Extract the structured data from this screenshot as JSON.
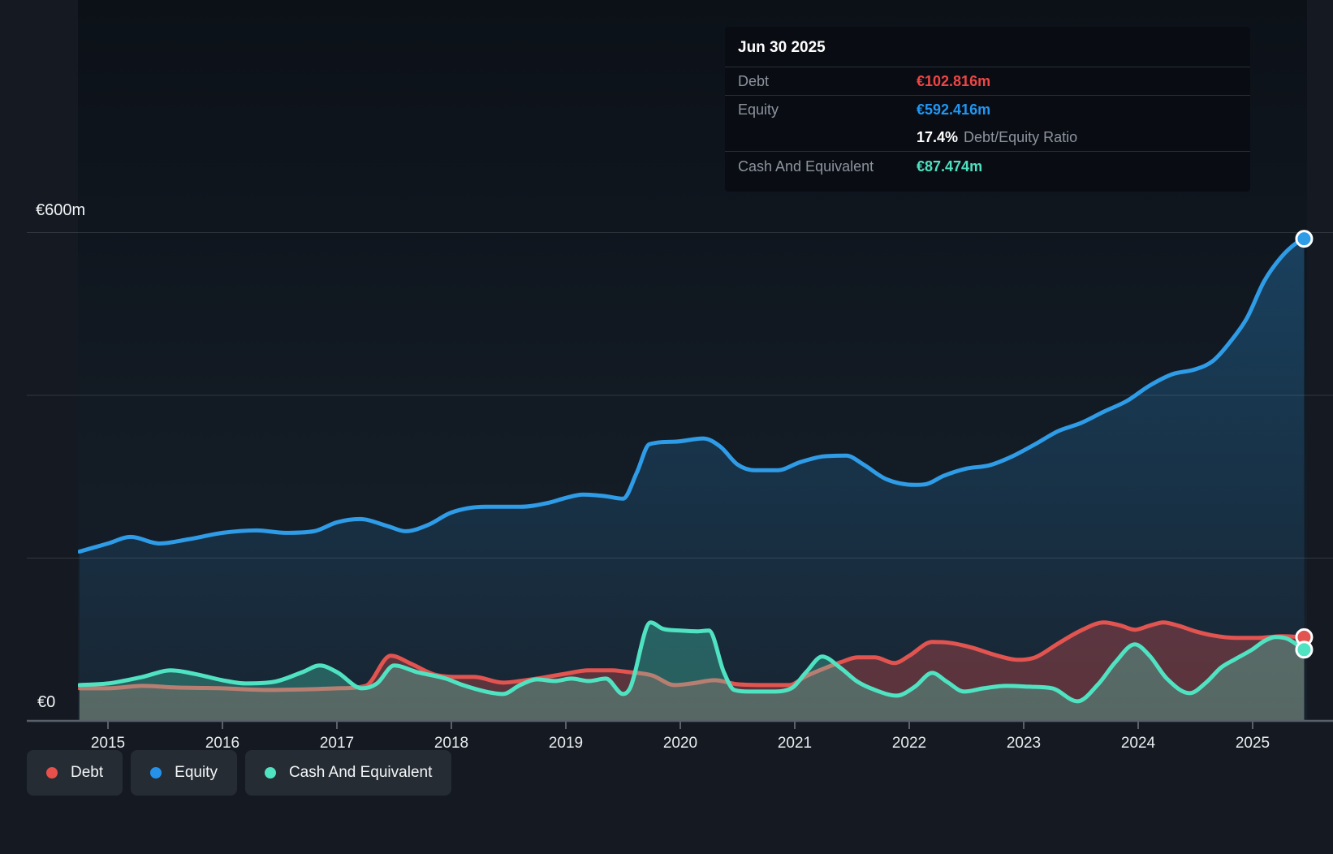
{
  "page": {
    "background": "#151a22"
  },
  "tooltip": {
    "date": "Jun 30 2025",
    "debt_label": "Debt",
    "debt_value": "€102.816m",
    "equity_label": "Equity",
    "equity_value": "€592.416m",
    "ratio_value": "17.4%",
    "ratio_label": "Debt/Equity Ratio",
    "cash_label": "Cash And Equivalent",
    "cash_value": "€87.474m"
  },
  "legend": {
    "items": [
      {
        "id": "debt",
        "label": "Debt",
        "color": "#e8504b"
      },
      {
        "id": "equity",
        "label": "Equity",
        "color": "#2492eb"
      },
      {
        "id": "cash",
        "label": "Cash And Equivalent",
        "color": "#50e3c2"
      }
    ]
  },
  "chart_data": {
    "type": "area",
    "unit": "€m",
    "x_axis": {
      "years": [
        "2015",
        "2016",
        "2017",
        "2018",
        "2019",
        "2020",
        "2021",
        "2022",
        "2023",
        "2024",
        "2025"
      ],
      "range": [
        2014.75,
        2025.45
      ]
    },
    "y_axis": {
      "label_top": "€600m",
      "label_zero": "€0",
      "range": [
        0,
        600
      ],
      "gridline_values": [
        600,
        400,
        200
      ]
    },
    "colors": {
      "equity": "#2f9ce8",
      "debt": "#e25450",
      "cash": "#50e3c2",
      "marker_ring": "#ffffff"
    },
    "end_values": {
      "debt": 102.816,
      "equity": 592.416,
      "cash": 87.474
    },
    "series": [
      {
        "id": "equity",
        "name": "Equity",
        "color": "#2f9ce8",
        "fill": "gradient",
        "points": [
          [
            2014.75,
            208
          ],
          [
            2015,
            218
          ],
          [
            2015.2,
            226
          ],
          [
            2015.45,
            218
          ],
          [
            2015.7,
            223
          ],
          [
            2016,
            231
          ],
          [
            2016.3,
            234
          ],
          [
            2016.55,
            231
          ],
          [
            2016.8,
            233
          ],
          [
            2017,
            244
          ],
          [
            2017.2,
            248
          ],
          [
            2017.45,
            239
          ],
          [
            2017.6,
            233
          ],
          [
            2017.8,
            241
          ],
          [
            2018,
            256
          ],
          [
            2018.3,
            263
          ],
          [
            2018.6,
            263
          ],
          [
            2018.85,
            268
          ],
          [
            2019,
            274
          ],
          [
            2019.15,
            278
          ],
          [
            2019.35,
            276
          ],
          [
            2019.5,
            273
          ],
          [
            2019.62,
            305
          ],
          [
            2019.73,
            340
          ],
          [
            2019.95,
            343
          ],
          [
            2020.2,
            347
          ],
          [
            2020.35,
            337
          ],
          [
            2020.5,
            315
          ],
          [
            2020.65,
            308
          ],
          [
            2020.85,
            308
          ],
          [
            2021.05,
            318
          ],
          [
            2021.25,
            325
          ],
          [
            2021.45,
            326
          ],
          [
            2021.6,
            315
          ],
          [
            2021.8,
            297
          ],
          [
            2022.05,
            290
          ],
          [
            2022.15,
            291
          ],
          [
            2022.3,
            301
          ],
          [
            2022.5,
            310
          ],
          [
            2022.7,
            314
          ],
          [
            2022.9,
            325
          ],
          [
            2023.1,
            340
          ],
          [
            2023.3,
            356
          ],
          [
            2023.5,
            366
          ],
          [
            2023.7,
            380
          ],
          [
            2023.9,
            393
          ],
          [
            2024.1,
            412
          ],
          [
            2024.3,
            426
          ],
          [
            2024.5,
            432
          ],
          [
            2024.65,
            442
          ],
          [
            2024.8,
            465
          ],
          [
            2024.95,
            495
          ],
          [
            2025.1,
            540
          ],
          [
            2025.25,
            570
          ],
          [
            2025.38,
            587
          ],
          [
            2025.45,
            592.416
          ]
        ]
      },
      {
        "id": "debt",
        "name": "Debt",
        "color": "#e25450",
        "fill": "rgba(224,80,78,0.34)",
        "points": [
          [
            2014.75,
            40
          ],
          [
            2015,
            40
          ],
          [
            2015.3,
            43
          ],
          [
            2015.6,
            41
          ],
          [
            2016,
            40
          ],
          [
            2016.4,
            38
          ],
          [
            2016.8,
            39
          ],
          [
            2017,
            40
          ],
          [
            2017.25,
            43
          ],
          [
            2017.47,
            80
          ],
          [
            2017.65,
            70
          ],
          [
            2017.85,
            57
          ],
          [
            2018.05,
            54
          ],
          [
            2018.2,
            54
          ],
          [
            2018.45,
            47
          ],
          [
            2018.6,
            49
          ],
          [
            2018.75,
            52
          ],
          [
            2019,
            58
          ],
          [
            2019.2,
            62
          ],
          [
            2019.4,
            62
          ],
          [
            2019.55,
            60
          ],
          [
            2019.75,
            56
          ],
          [
            2019.95,
            44
          ],
          [
            2020.1,
            46
          ],
          [
            2020.3,
            50
          ],
          [
            2020.5,
            45
          ],
          [
            2020.75,
            44
          ],
          [
            2020.95,
            44
          ],
          [
            2021.1,
            55
          ],
          [
            2021.25,
            64
          ],
          [
            2021.4,
            72
          ],
          [
            2021.55,
            78
          ],
          [
            2021.7,
            78
          ],
          [
            2021.87,
            71
          ],
          [
            2022,
            80
          ],
          [
            2022.2,
            97
          ],
          [
            2022.35,
            96
          ],
          [
            2022.55,
            90
          ],
          [
            2022.75,
            81
          ],
          [
            2022.95,
            75
          ],
          [
            2023.1,
            78
          ],
          [
            2023.3,
            95
          ],
          [
            2023.5,
            111
          ],
          [
            2023.7,
            121
          ],
          [
            2023.85,
            117
          ],
          [
            2023.97,
            112
          ],
          [
            2024.1,
            117
          ],
          [
            2024.22,
            121
          ],
          [
            2024.35,
            117
          ],
          [
            2024.5,
            110
          ],
          [
            2024.65,
            105
          ],
          [
            2024.85,
            102
          ],
          [
            2025.05,
            102
          ],
          [
            2025.25,
            104
          ],
          [
            2025.45,
            102.816
          ]
        ]
      },
      {
        "id": "cash",
        "name": "Cash And Equivalent",
        "color": "#50e3c2",
        "fill": "rgba(80,227,194,0.30)",
        "points": [
          [
            2014.75,
            44
          ],
          [
            2015,
            46
          ],
          [
            2015.3,
            54
          ],
          [
            2015.55,
            62
          ],
          [
            2015.75,
            58
          ],
          [
            2016,
            50
          ],
          [
            2016.2,
            46
          ],
          [
            2016.45,
            48
          ],
          [
            2016.7,
            60
          ],
          [
            2016.85,
            68
          ],
          [
            2017,
            60
          ],
          [
            2017.22,
            40
          ],
          [
            2017.35,
            46
          ],
          [
            2017.5,
            68
          ],
          [
            2017.7,
            60
          ],
          [
            2017.95,
            52
          ],
          [
            2018.1,
            44
          ],
          [
            2018.3,
            36
          ],
          [
            2018.45,
            33
          ],
          [
            2018.6,
            44
          ],
          [
            2018.75,
            51
          ],
          [
            2018.9,
            49
          ],
          [
            2019.05,
            52
          ],
          [
            2019.2,
            49
          ],
          [
            2019.35,
            52
          ],
          [
            2019.5,
            33
          ],
          [
            2019.56,
            40
          ],
          [
            2019.74,
            121
          ],
          [
            2019.85,
            113
          ],
          [
            2020,
            111
          ],
          [
            2020.15,
            110
          ],
          [
            2020.25,
            111
          ],
          [
            2020.38,
            60
          ],
          [
            2020.47,
            38
          ],
          [
            2020.6,
            36
          ],
          [
            2020.8,
            36
          ],
          [
            2020.97,
            40
          ],
          [
            2021.1,
            60
          ],
          [
            2021.24,
            79
          ],
          [
            2021.4,
            65
          ],
          [
            2021.55,
            48
          ],
          [
            2021.7,
            38
          ],
          [
            2021.89,
            31
          ],
          [
            2022.05,
            42
          ],
          [
            2022.2,
            59
          ],
          [
            2022.33,
            48
          ],
          [
            2022.48,
            36
          ],
          [
            2022.65,
            40
          ],
          [
            2022.85,
            43
          ],
          [
            2023.05,
            42
          ],
          [
            2023.25,
            40
          ],
          [
            2023.47,
            24
          ],
          [
            2023.65,
            45
          ],
          [
            2023.8,
            72
          ],
          [
            2023.97,
            94
          ],
          [
            2024.1,
            80
          ],
          [
            2024.25,
            52
          ],
          [
            2024.45,
            34
          ],
          [
            2024.6,
            48
          ],
          [
            2024.72,
            65
          ],
          [
            2024.85,
            76
          ],
          [
            2025,
            88
          ],
          [
            2025.1,
            98
          ],
          [
            2025.2,
            103
          ],
          [
            2025.3,
            101
          ],
          [
            2025.45,
            87.474
          ]
        ]
      }
    ]
  }
}
